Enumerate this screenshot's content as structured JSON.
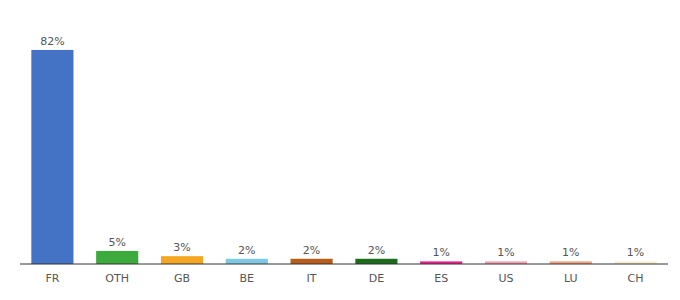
{
  "chart_data": {
    "type": "bar",
    "categories": [
      "FR",
      "OTH",
      "GB",
      "BE",
      "IT",
      "DE",
      "ES",
      "US",
      "LU",
      "CH"
    ],
    "values": [
      82,
      5,
      3,
      2,
      2,
      2,
      1,
      1,
      1,
      1
    ],
    "value_labels": [
      "82%",
      "5%",
      "3%",
      "2%",
      "2%",
      "2%",
      "1%",
      "1%",
      "1%",
      "1%"
    ],
    "colors": [
      "#4472C4",
      "#3DAA3D",
      "#F5A623",
      "#7EC8E3",
      "#B85C1A",
      "#1A6B1A",
      "#E91E8C",
      "#F4A0B0",
      "#F0A080",
      "#F5F0D0"
    ],
    "ylim": [
      0,
      95
    ],
    "data_labels": true,
    "tick_labels": "x",
    "grid": false
  }
}
